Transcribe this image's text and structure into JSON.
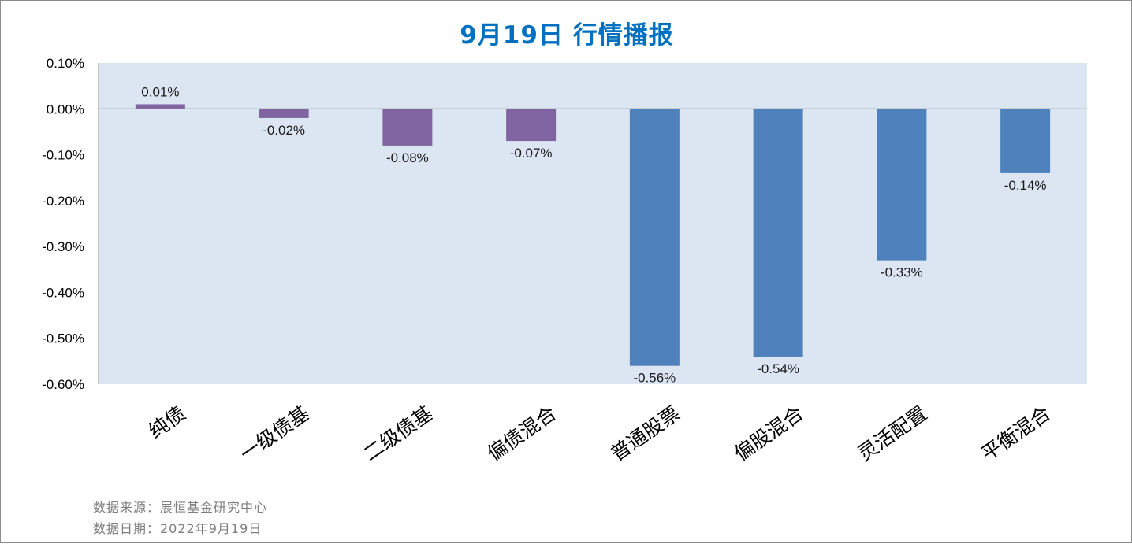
{
  "title": "9月19日  行情播报",
  "footer": {
    "source": "数据来源：展恒基金研究中心",
    "date": "数据日期：2022年9月19日"
  },
  "colors": {
    "title": "#0070c0",
    "plot_background": "#dce6f2",
    "bond_series": "#8064a2",
    "equity_series": "#4f81bd",
    "footer_text": "#7f7f7f"
  },
  "chart_data": {
    "type": "bar",
    "title": "9月19日  行情播报",
    "xlabel": "",
    "ylabel": "",
    "categories": [
      "纯债",
      "一级债基",
      "二级债基",
      "偏债混合",
      "普通股票",
      "偏股混合",
      "灵活配置",
      "平衡混合"
    ],
    "values": [
      0.01,
      -0.02,
      -0.08,
      -0.07,
      -0.56,
      -0.54,
      -0.33,
      -0.14
    ],
    "data_labels": [
      "0.01%",
      "-0.02%",
      "-0.08%",
      "-0.07%",
      "-0.56%",
      "-0.54%",
      "-0.33%",
      "-0.14%"
    ],
    "bar_colors": [
      "#8064a2",
      "#8064a2",
      "#8064a2",
      "#8064a2",
      "#4f81bd",
      "#4f81bd",
      "#4f81bd",
      "#4f81bd"
    ],
    "ylim": [
      -0.6,
      0.1
    ],
    "yticks": [
      0.1,
      0.0,
      -0.1,
      -0.2,
      -0.3,
      -0.4,
      -0.5,
      -0.6
    ],
    "ytick_labels": [
      "0.10%",
      "0.00%",
      "-0.10%",
      "-0.20%",
      "-0.30%",
      "-0.40%",
      "-0.50%",
      "-0.60%"
    ],
    "unit": "%",
    "grid": false,
    "legend": "none"
  }
}
